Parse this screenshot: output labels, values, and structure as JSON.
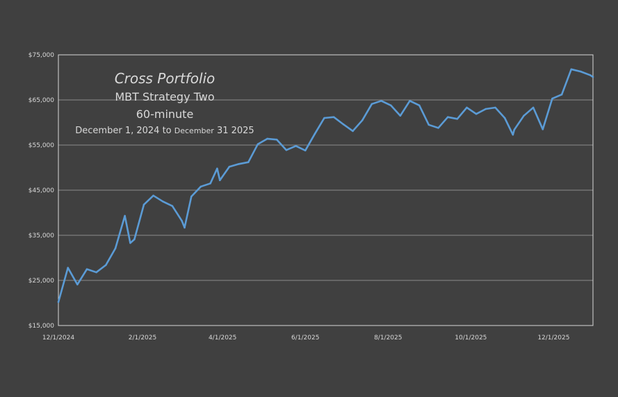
{
  "chart_data": {
    "type": "line",
    "title": "Cross Portfolio",
    "subtitle_lines": [
      "MBT Strategy Two",
      "60-minute"
    ],
    "date_range_label": {
      "part1": "December 1, 2024 to ",
      "part2": "December",
      "part3": " 31 2025"
    },
    "xlabel": "",
    "ylabel": "",
    "xlim": [
      "2024-12-01",
      "2025-12-30"
    ],
    "ylim": [
      15000,
      75000
    ],
    "x_ticks": [
      {
        "date": "2024-12-01",
        "label": "12/1/2024"
      },
      {
        "date": "2025-02-01",
        "label": "2/1/2025"
      },
      {
        "date": "2025-04-01",
        "label": "4/1/2025"
      },
      {
        "date": "2025-06-01",
        "label": "6/1/2025"
      },
      {
        "date": "2025-08-01",
        "label": "8/1/2025"
      },
      {
        "date": "2025-10-01",
        "label": "10/1/2025"
      },
      {
        "date": "2025-12-01",
        "label": "12/1/2025"
      }
    ],
    "y_ticks": [
      {
        "value": 15000,
        "label": "$15,000"
      },
      {
        "value": 25000,
        "label": "$25,000"
      },
      {
        "value": 35000,
        "label": "$35,000"
      },
      {
        "value": 45000,
        "label": "$45,000"
      },
      {
        "value": 55000,
        "label": "$55,000"
      },
      {
        "value": 65000,
        "label": "$65,000"
      },
      {
        "value": 75000,
        "label": "$75,000"
      }
    ],
    "grid": "horizontal",
    "legend": "none",
    "colors": {
      "background": "#404040",
      "line": "#5b9bd5",
      "grid": "#8c8c8c",
      "axis": "#d9d9d9",
      "text": "#d9d9d9"
    },
    "series": [
      {
        "x": [
          "2024-12-01",
          "2024-12-08",
          "2024-12-15",
          "2024-12-22",
          "2024-12-29",
          "2025-01-05",
          "2025-01-12",
          "2025-01-19",
          "2025-01-23",
          "2025-01-26",
          "2025-02-02",
          "2025-02-09",
          "2025-02-16",
          "2025-02-23",
          "2025-03-02",
          "2025-03-04",
          "2025-03-09",
          "2025-03-16",
          "2025-03-23",
          "2025-03-28",
          "2025-03-30",
          "2025-04-06",
          "2025-04-13",
          "2025-04-20",
          "2025-04-27",
          "2025-05-04",
          "2025-05-11",
          "2025-05-18",
          "2025-05-25",
          "2025-06-01",
          "2025-06-08",
          "2025-06-15",
          "2025-06-22",
          "2025-06-29",
          "2025-07-06",
          "2025-07-13",
          "2025-07-20",
          "2025-07-27",
          "2025-08-03",
          "2025-08-10",
          "2025-08-17",
          "2025-08-24",
          "2025-08-31",
          "2025-09-07",
          "2025-09-14",
          "2025-09-21",
          "2025-09-28",
          "2025-10-05",
          "2025-10-12",
          "2025-10-19",
          "2025-10-26",
          "2025-11-01",
          "2025-11-02",
          "2025-11-09",
          "2025-11-16",
          "2025-11-23",
          "2025-11-30",
          "2025-12-07",
          "2025-12-14",
          "2025-12-21",
          "2025-12-28",
          "2025-12-30"
        ],
        "y": [
          20200,
          27800,
          24100,
          27500,
          26800,
          28400,
          32100,
          39300,
          33300,
          34100,
          41800,
          43800,
          42500,
          41500,
          38200,
          36700,
          43600,
          45800,
          46500,
          49800,
          47200,
          50200,
          50800,
          51200,
          55200,
          56400,
          56200,
          53900,
          54800,
          53800,
          57500,
          61000,
          61200,
          59600,
          58100,
          60500,
          64100,
          64800,
          63800,
          61500,
          64800,
          63800,
          59500,
          58800,
          61200,
          60800,
          63300,
          61900,
          63000,
          63300,
          61000,
          57300,
          58400,
          61500,
          63300,
          58500,
          65300,
          66200,
          71800,
          71300,
          70500,
          70100
        ]
      }
    ]
  }
}
